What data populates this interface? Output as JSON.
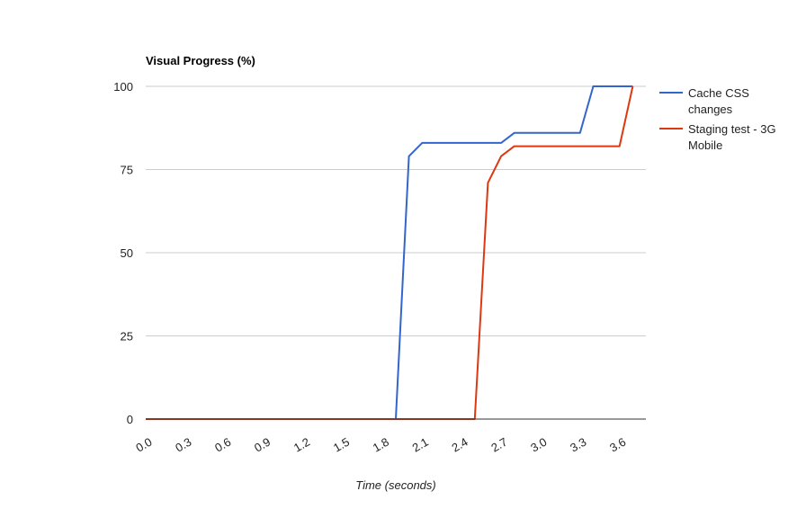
{
  "chart_data": {
    "type": "line",
    "title": "Visual Progress (%)",
    "xlabel": "Time (seconds)",
    "ylabel": "",
    "ylim": [
      0,
      100
    ],
    "xlim": [
      0,
      3.8
    ],
    "y_ticks": [
      0,
      25,
      50,
      75,
      100
    ],
    "x_ticks": [
      "0.0",
      "0.3",
      "0.6",
      "0.9",
      "1.2",
      "1.5",
      "1.8",
      "2.1",
      "2.4",
      "2.7",
      "3.0",
      "3.3",
      "3.6"
    ],
    "grid": true,
    "legend_position": "right",
    "series": [
      {
        "name": "Cache CSS changes",
        "name_lines": [
          "Cache CSS",
          "changes"
        ],
        "color": "#3366cc",
        "points": [
          [
            0.0,
            0
          ],
          [
            1.9,
            0
          ],
          [
            2.0,
            79
          ],
          [
            2.1,
            83
          ],
          [
            2.7,
            83
          ],
          [
            2.8,
            86
          ],
          [
            3.3,
            86
          ],
          [
            3.4,
            100
          ],
          [
            3.7,
            100
          ]
        ]
      },
      {
        "name": "Staging test - 3G Mobile",
        "name_lines": [
          "Staging test - 3G",
          "Mobile"
        ],
        "color": "#dc3912",
        "points": [
          [
            0.0,
            0
          ],
          [
            2.5,
            0
          ],
          [
            2.6,
            71
          ],
          [
            2.7,
            79
          ],
          [
            2.8,
            82
          ],
          [
            3.6,
            82
          ],
          [
            3.7,
            100
          ]
        ]
      }
    ]
  }
}
